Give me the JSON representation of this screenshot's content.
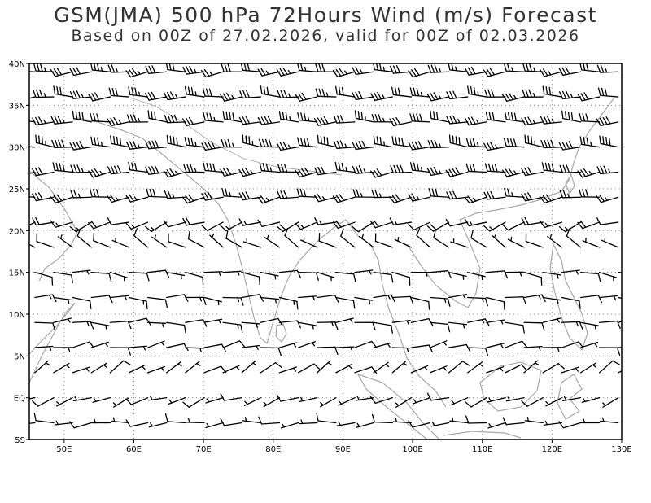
{
  "title": "GSM(JMA) 500 hPa 72Hours Wind (m/s) Forecast",
  "subtitle": "Based on 00Z of 27.02.2026, valid for 00Z of 02.03.2026",
  "map": {
    "lon_range": [
      45,
      130
    ],
    "lat_range": [
      -5,
      40
    ],
    "lon_ticks": [
      {
        "value": 50,
        "label": "50E"
      },
      {
        "value": 60,
        "label": "60E"
      },
      {
        "value": 70,
        "label": "70E"
      },
      {
        "value": 80,
        "label": "80E"
      },
      {
        "value": 90,
        "label": "90E"
      },
      {
        "value": 100,
        "label": "100E"
      },
      {
        "value": 110,
        "label": "110E"
      },
      {
        "value": 120,
        "label": "120E"
      },
      {
        "value": 130,
        "label": "130E"
      }
    ],
    "lat_ticks": [
      {
        "value": 40,
        "label": "40N"
      },
      {
        "value": 35,
        "label": "35N"
      },
      {
        "value": 30,
        "label": "30N"
      },
      {
        "value": 25,
        "label": "25N"
      },
      {
        "value": 20,
        "label": "20N"
      },
      {
        "value": 15,
        "label": "15N"
      },
      {
        "value": 10,
        "label": "10N"
      },
      {
        "value": 5,
        "label": "5N"
      },
      {
        "value": 0,
        "label": "EQ"
      },
      {
        "value": -5,
        "label": "5S"
      }
    ],
    "grid": "dotted",
    "colors": {
      "frame": "#000000",
      "coast": "#a8a8a8",
      "barb": "#000000",
      "grid": "#888888",
      "title": "#333333"
    }
  },
  "wind_rows": [
    {
      "lat": 39,
      "dir": 265,
      "spd": 30
    },
    {
      "lat": 36,
      "dir": 268,
      "spd": 32
    },
    {
      "lat": 33,
      "dir": 270,
      "spd": 35
    },
    {
      "lat": 30,
      "dir": 272,
      "spd": 38
    },
    {
      "lat": 27,
      "dir": 265,
      "spd": 35
    },
    {
      "lat": 24,
      "dir": 262,
      "spd": 28
    },
    {
      "lat": 21,
      "dir": 250,
      "spd": 15
    },
    {
      "lat": 18,
      "dir": 300,
      "spd": 8
    },
    {
      "lat": 15,
      "dir": 95,
      "spd": 8
    },
    {
      "lat": 12,
      "dir": 92,
      "spd": 10
    },
    {
      "lat": 9,
      "dir": 88,
      "spd": 9
    },
    {
      "lat": 6,
      "dir": 80,
      "spd": 7
    },
    {
      "lat": 3,
      "dir": 60,
      "spd": 5
    },
    {
      "lat": 0,
      "dir": 250,
      "spd": 5
    },
    {
      "lat": -3,
      "dir": 265,
      "spd": 6
    }
  ]
}
